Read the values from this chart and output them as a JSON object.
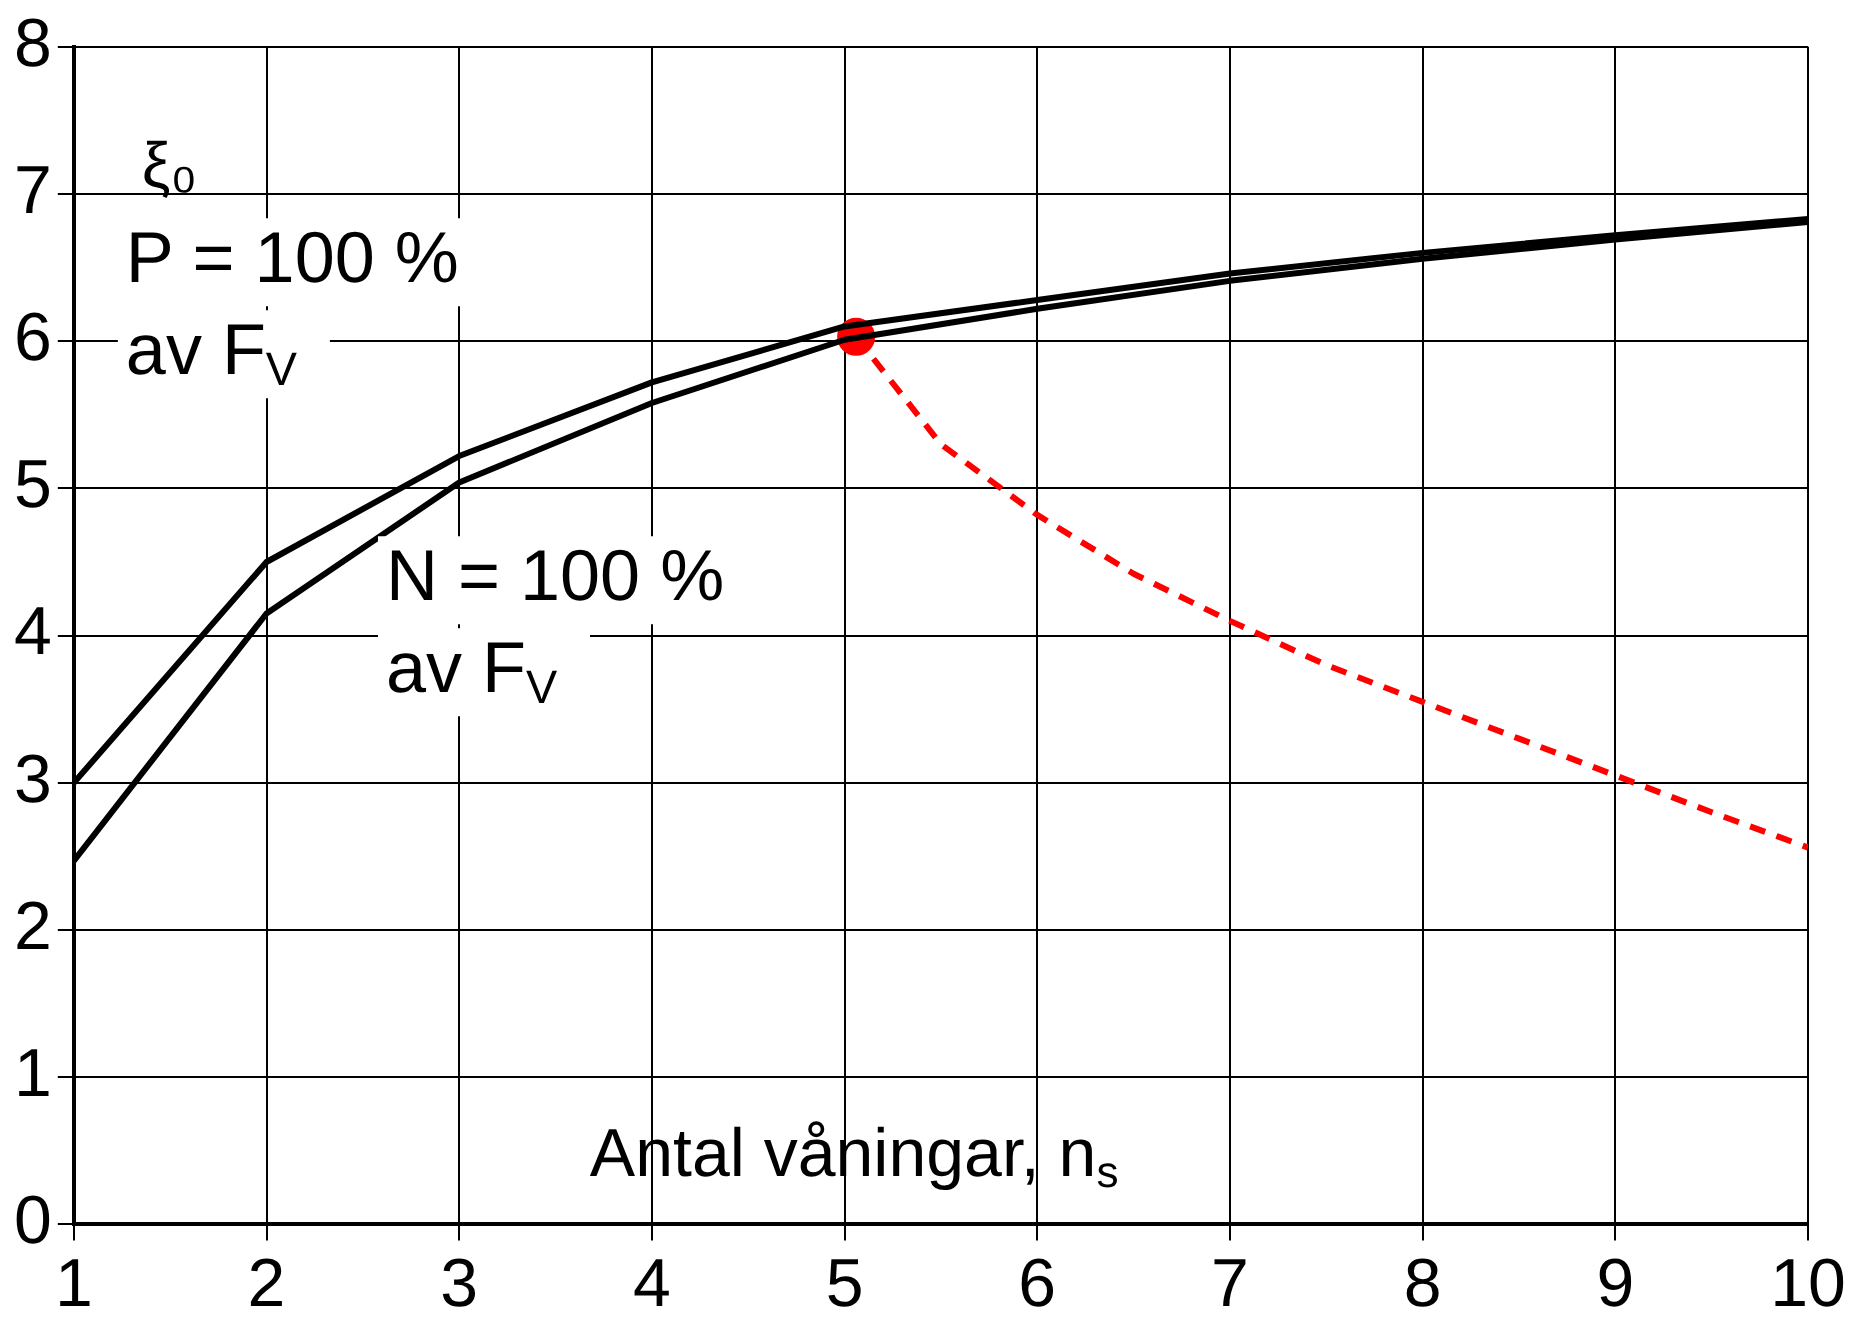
{
  "chart_data": {
    "type": "line",
    "xlabel": "Antal våningar, n$_{s}$",
    "ylabel": "ξ₀",
    "x": [
      1,
      2,
      3,
      4,
      5,
      6,
      7,
      8,
      9,
      10
    ],
    "series": [
      {
        "color": "#000000",
        "values": [
          3.0,
          4.5,
          5.22,
          5.72,
          6.1,
          6.28,
          6.46,
          6.6,
          6.72,
          6.83
        ]
      },
      {
        "color": "#000000",
        "values": [
          2.47,
          4.15,
          5.04,
          5.58,
          6.01,
          6.22,
          6.41,
          6.56,
          6.69,
          6.81
        ]
      },
      {
        "type": "line",
        "color": "#ff0000",
        "line_style": "dashed",
        "marker": "none",
        "x": [
          5.06,
          5.5,
          6,
          6.5,
          7,
          7.5,
          8,
          8.5,
          9,
          9.5,
          10
        ],
        "values": [
          6.03,
          5.3,
          4.82,
          4.42,
          4.1,
          3.8,
          3.55,
          3.3,
          3.05,
          2.8,
          2.56
        ]
      },
      {
        "type": "scatter",
        "color": "#ff0000",
        "marker": "circle",
        "x": [
          5.06
        ],
        "values": [
          6.03
        ]
      }
    ],
    "xlim": [
      1,
      10
    ],
    "xticks": [
      1,
      2,
      3,
      4,
      5,
      6,
      7,
      8,
      9,
      10
    ],
    "ylim": [
      0,
      8
    ],
    "yticks": [
      0,
      1,
      2,
      3,
      4,
      5,
      6,
      7,
      8
    ],
    "grid": true,
    "marker": "none",
    "line_style": "solid",
    "annotations": [
      "P = 100 %\nav F$_{V}$",
      "N = 100 %\nav F$_{V}$"
    ]
  }
}
